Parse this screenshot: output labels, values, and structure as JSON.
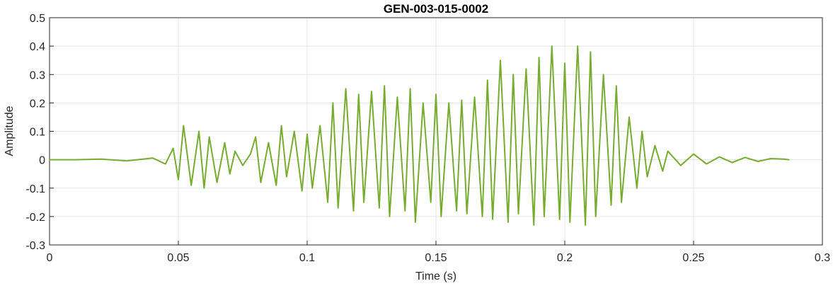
{
  "chart_data": {
    "type": "line",
    "title": "GEN-003-015-0002",
    "xlabel": "Time (s)",
    "ylabel": "Amplitude",
    "xlim": [
      0,
      0.3
    ],
    "ylim": [
      -0.3,
      0.5
    ],
    "xticks": [
      0,
      0.05,
      0.1,
      0.15,
      0.2,
      0.25,
      0.3
    ],
    "xtick_labels": [
      "0",
      "0.05",
      "0.1",
      "0.15",
      "0.2",
      "0.25",
      "0.3"
    ],
    "yticks": [
      -0.3,
      -0.2,
      -0.1,
      0,
      0.1,
      0.2,
      0.3,
      0.4,
      0.5
    ],
    "ytick_labels": [
      "-0.3",
      "-0.2",
      "-0.1",
      "0",
      "0.1",
      "0.2",
      "0.3",
      "0.4",
      "0.5"
    ],
    "grid": true,
    "line_color": "#77ac30",
    "series": [
      {
        "x": [
          0.0,
          0.01,
          0.02,
          0.03,
          0.04,
          0.045,
          0.048,
          0.05,
          0.052,
          0.055,
          0.058,
          0.06,
          0.062,
          0.065,
          0.068,
          0.07,
          0.072,
          0.075,
          0.078,
          0.08,
          0.082,
          0.085,
          0.088,
          0.09,
          0.092,
          0.095,
          0.098,
          0.1,
          0.102,
          0.105,
          0.108,
          0.11,
          0.112,
          0.115,
          0.118,
          0.12,
          0.122,
          0.125,
          0.128,
          0.13,
          0.132,
          0.135,
          0.138,
          0.14,
          0.142,
          0.145,
          0.148,
          0.15,
          0.152,
          0.155,
          0.158,
          0.16,
          0.162,
          0.165,
          0.168,
          0.17,
          0.172,
          0.175,
          0.178,
          0.18,
          0.182,
          0.185,
          0.188,
          0.19,
          0.192,
          0.195,
          0.198,
          0.2,
          0.202,
          0.205,
          0.208,
          0.21,
          0.212,
          0.215,
          0.218,
          0.22,
          0.222,
          0.225,
          0.228,
          0.23,
          0.232,
          0.235,
          0.238,
          0.24,
          0.245,
          0.25,
          0.255,
          0.26,
          0.265,
          0.27,
          0.275,
          0.28,
          0.285,
          0.287
        ],
        "y": [
          0.0,
          0.0,
          0.002,
          -0.004,
          0.006,
          -0.015,
          0.04,
          -0.07,
          0.12,
          -0.09,
          0.1,
          -0.1,
          0.08,
          -0.08,
          0.06,
          -0.05,
          0.03,
          -0.02,
          0.02,
          0.08,
          -0.08,
          0.06,
          -0.09,
          0.12,
          -0.06,
          0.1,
          -0.11,
          0.09,
          -0.1,
          0.12,
          -0.15,
          0.2,
          -0.17,
          0.25,
          -0.18,
          0.23,
          -0.15,
          0.24,
          -0.17,
          0.26,
          -0.2,
          0.22,
          -0.18,
          0.25,
          -0.22,
          0.2,
          -0.15,
          0.23,
          -0.2,
          0.2,
          -0.18,
          0.21,
          -0.19,
          0.22,
          -0.2,
          0.28,
          -0.21,
          0.35,
          -0.22,
          0.3,
          -0.19,
          0.32,
          -0.23,
          0.36,
          -0.2,
          0.4,
          -0.21,
          0.34,
          -0.22,
          0.4,
          -0.23,
          0.38,
          -0.2,
          0.3,
          -0.16,
          0.26,
          -0.15,
          0.15,
          -0.1,
          0.1,
          -0.06,
          0.05,
          -0.04,
          0.03,
          -0.02,
          0.02,
          -0.015,
          0.01,
          -0.01,
          0.008,
          -0.006,
          0.004,
          0.002,
          0.0
        ]
      }
    ]
  }
}
